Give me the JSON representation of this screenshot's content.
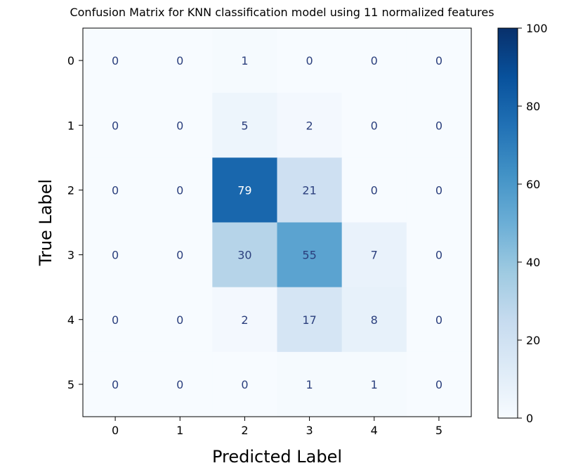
{
  "chart_data": {
    "type": "heatmap",
    "title": "Confusion Matrix for KNN classification model using 11 normalized features",
    "xlabel": "Predicted Label",
    "ylabel": "True Label",
    "x_categories": [
      "0",
      "1",
      "2",
      "3",
      "4",
      "5"
    ],
    "y_categories": [
      "0",
      "1",
      "2",
      "3",
      "4",
      "5"
    ],
    "values": [
      [
        0,
        0,
        1,
        0,
        0,
        0
      ],
      [
        0,
        0,
        5,
        2,
        0,
        0
      ],
      [
        0,
        0,
        79,
        21,
        0,
        0
      ],
      [
        0,
        0,
        30,
        55,
        7,
        0
      ],
      [
        0,
        0,
        2,
        17,
        8,
        0
      ],
      [
        0,
        0,
        0,
        1,
        1,
        0
      ]
    ],
    "colorbar": {
      "range": [
        0,
        100
      ],
      "ticks": [
        0,
        20,
        40,
        60,
        80,
        100
      ],
      "colormap": "Blues"
    },
    "grid": false
  }
}
